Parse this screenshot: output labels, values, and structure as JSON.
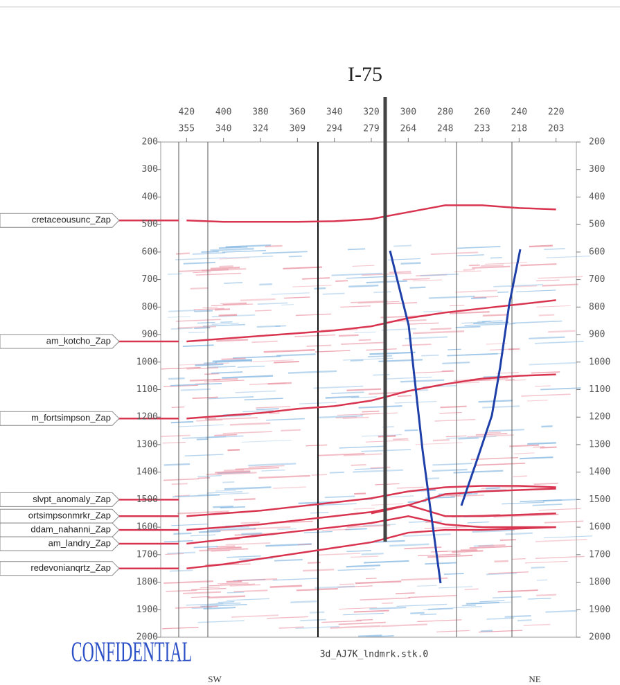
{
  "chart_data": {
    "type": "seismic-section",
    "annotation": "I-75",
    "stamp": "CONFIDENTIAL",
    "caption": "3d_AJ7K_lndmrk.stk.0",
    "left_direction": "SW",
    "right_direction": "NE",
    "xlim": [
      434,
      209
    ],
    "xticks": [
      420,
      400,
      380,
      360,
      340,
      320,
      300,
      280,
      260,
      240,
      220
    ],
    "xticks_secondary": [
      355,
      340,
      324,
      309,
      294,
      279,
      264,
      248,
      233,
      218,
      203
    ],
    "ylim": [
      200,
      2000
    ],
    "yticks": [
      200,
      300,
      400,
      500,
      600,
      700,
      800,
      900,
      1000,
      1100,
      1200,
      1300,
      1400,
      1500,
      1600,
      1700,
      1800,
      1900,
      2000
    ],
    "series": [
      {
        "name": "cretaceousunc_Zap",
        "color": "#d9344f",
        "values": [
          485,
          490,
          490,
          490,
          488,
          480,
          455,
          430,
          430,
          440,
          445
        ]
      },
      {
        "name": "am_kotcho_Zap",
        "color": "#d9344f",
        "values": [
          925,
          915,
          905,
          895,
          885,
          870,
          840,
          820,
          805,
          790,
          775
        ]
      },
      {
        "name": "m_fortsimpson_Zap",
        "color": "#d9344f",
        "values": [
          1205,
          1195,
          1185,
          1170,
          1160,
          1140,
          1105,
          1080,
          1060,
          1050,
          1045
        ]
      },
      {
        "name": "slvpt_anomaly_Zap",
        "color": "#d9344f",
        "values": [
          1500,
          null,
          null,
          null,
          null,
          1550,
          1520,
          1480,
          1470,
          1465,
          1460
        ]
      },
      {
        "name": "ortsimpsonmrkr_Zap",
        "color": "#d9344f",
        "values": [
          1560,
          1550,
          1540,
          1525,
          1510,
          1495,
          1470,
          1455,
          1450,
          1450,
          1455
        ]
      },
      {
        "name": "ddam_nahanni_Zap",
        "color": "#d9344f",
        "values": [
          1610,
          1600,
          1590,
          1575,
          1560,
          1545,
          1520,
          1560,
          1560,
          1555,
          1550
        ]
      },
      {
        "name": "am_landry_Zap",
        "color": "#d9344f",
        "values": [
          1660,
          1645,
          1630,
          1615,
          1600,
          1585,
          1560,
          1590,
          1600,
          1600,
          1600
        ]
      },
      {
        "name": "redevonianqrtz_Zap",
        "color": "#d9344f",
        "values": [
          1750,
          1735,
          1715,
          1695,
          1675,
          1655,
          1620,
          1610,
          1610,
          1605,
          1600
        ]
      }
    ]
  }
}
